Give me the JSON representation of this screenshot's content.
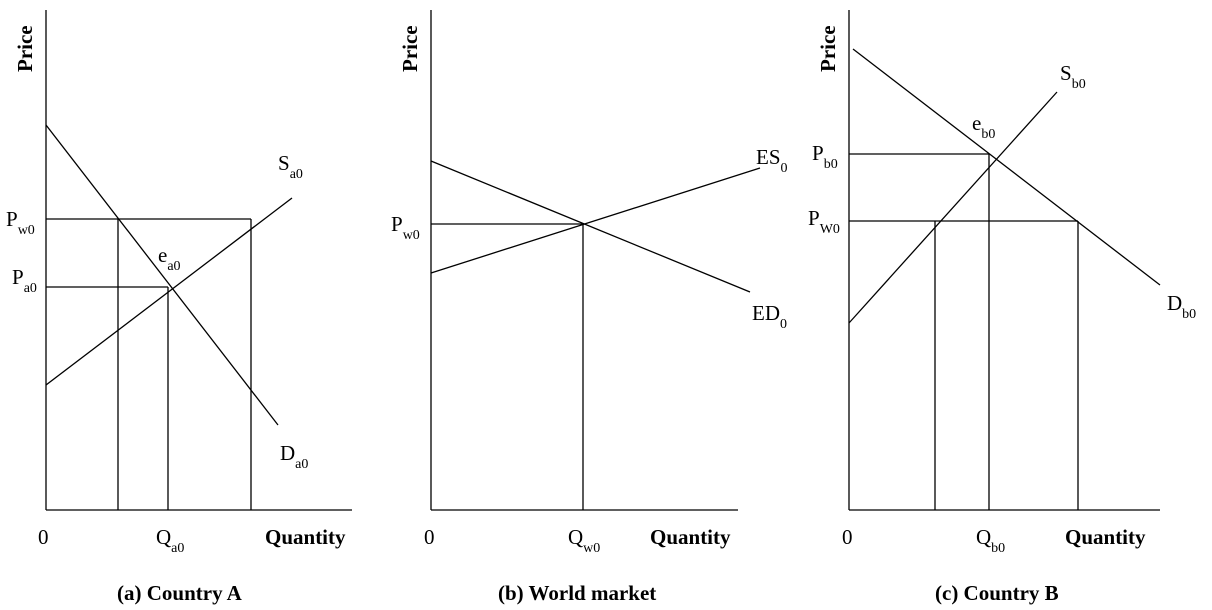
{
  "panels": {
    "a": {
      "caption": "(a) Country A",
      "axis_y": "Price",
      "axis_x": "Quantity",
      "origin": "0",
      "supply": {
        "main": "S",
        "sub": "a0"
      },
      "demand": {
        "main": "D",
        "sub": "a0"
      },
      "equilibrium": {
        "main": "e",
        "sub": "a0"
      },
      "price_world": {
        "main": "P",
        "sub": "w0"
      },
      "price_eq": {
        "main": "P",
        "sub": "a0"
      },
      "quantity_eq": {
        "main": "Q",
        "sub": "a0"
      }
    },
    "b": {
      "caption": "(b) World market",
      "axis_y": "Price",
      "axis_x": "Quantity",
      "origin": "0",
      "excess_supply": {
        "main": "ES",
        "sub": "0"
      },
      "excess_demand": {
        "main": "ED",
        "sub": "0"
      },
      "price_world": {
        "main": "P",
        "sub": "w0"
      },
      "quantity_eq": {
        "main": "Q",
        "sub": "w0"
      }
    },
    "c": {
      "caption": "(c) Country B",
      "axis_y": "Price",
      "axis_x": "Quantity",
      "origin": "0",
      "supply": {
        "main": "S",
        "sub": "b0"
      },
      "demand": {
        "main": "D",
        "sub": "b0"
      },
      "equilibrium": {
        "main": "e",
        "sub": "b0"
      },
      "price_eq": {
        "main": "P",
        "sub": "b0"
      },
      "price_world": {
        "main": "P",
        "sub": "W0"
      },
      "quantity_eq": {
        "main": "Q",
        "sub": "b0"
      }
    }
  }
}
